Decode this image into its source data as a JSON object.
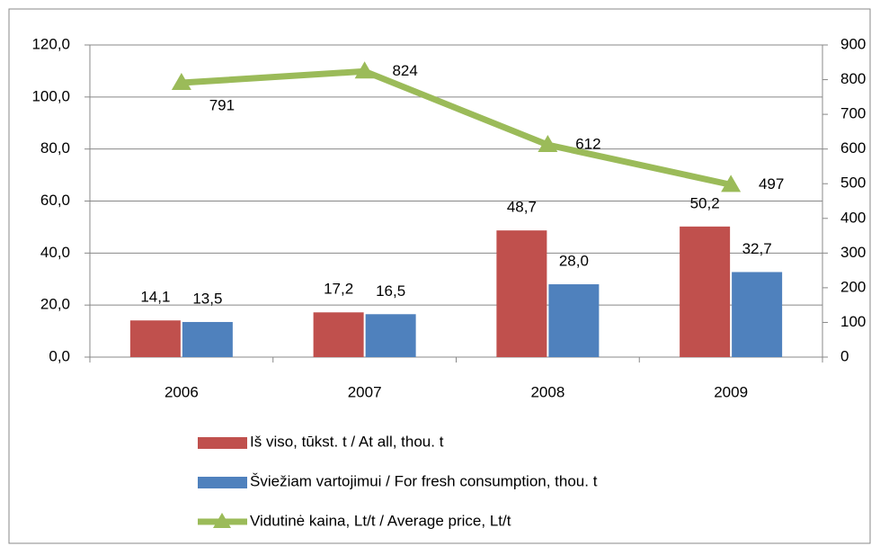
{
  "chart_data": {
    "type": "bar_line",
    "categories": [
      "2006",
      "2007",
      "2008",
      "2009"
    ],
    "series": [
      {
        "name": "Iš viso, tūkst. t / At all, thou. t",
        "color": "#c0504d",
        "type": "bar",
        "values": [
          14.1,
          17.2,
          48.7,
          50.2
        ],
        "value_labels": [
          "14,1",
          "17,2",
          "48,7",
          "50,2"
        ]
      },
      {
        "name": "Šviežiam vartojimui / For fresh consumption, thou. t",
        "color": "#4f81bd",
        "type": "bar",
        "values": [
          13.5,
          16.5,
          28.0,
          32.7
        ],
        "value_labels": [
          "13,5",
          "16,5",
          "28,0",
          "32,7"
        ]
      },
      {
        "name": "Vidutinė kaina, Lt/t / Average price, Lt/t",
        "color": "#9bbb59",
        "type": "line",
        "axis": "y2",
        "values": [
          791,
          824,
          612,
          497
        ]
      }
    ],
    "ylim": [
      0,
      120
    ],
    "yticks": [
      {
        "value": 0,
        "label": "0,0"
      },
      {
        "value": 20,
        "label": "20,0"
      },
      {
        "value": 40,
        "label": "40,0"
      },
      {
        "value": 60,
        "label": "60,0"
      },
      {
        "value": 80,
        "label": "80,0"
      },
      {
        "value": 100,
        "label": "100,0"
      },
      {
        "value": 120,
        "label": "120,0"
      }
    ],
    "y2lim": [
      0,
      900
    ],
    "y2ticks": [
      0,
      100,
      200,
      300,
      400,
      500,
      600,
      700,
      800,
      900
    ],
    "grid": true
  }
}
